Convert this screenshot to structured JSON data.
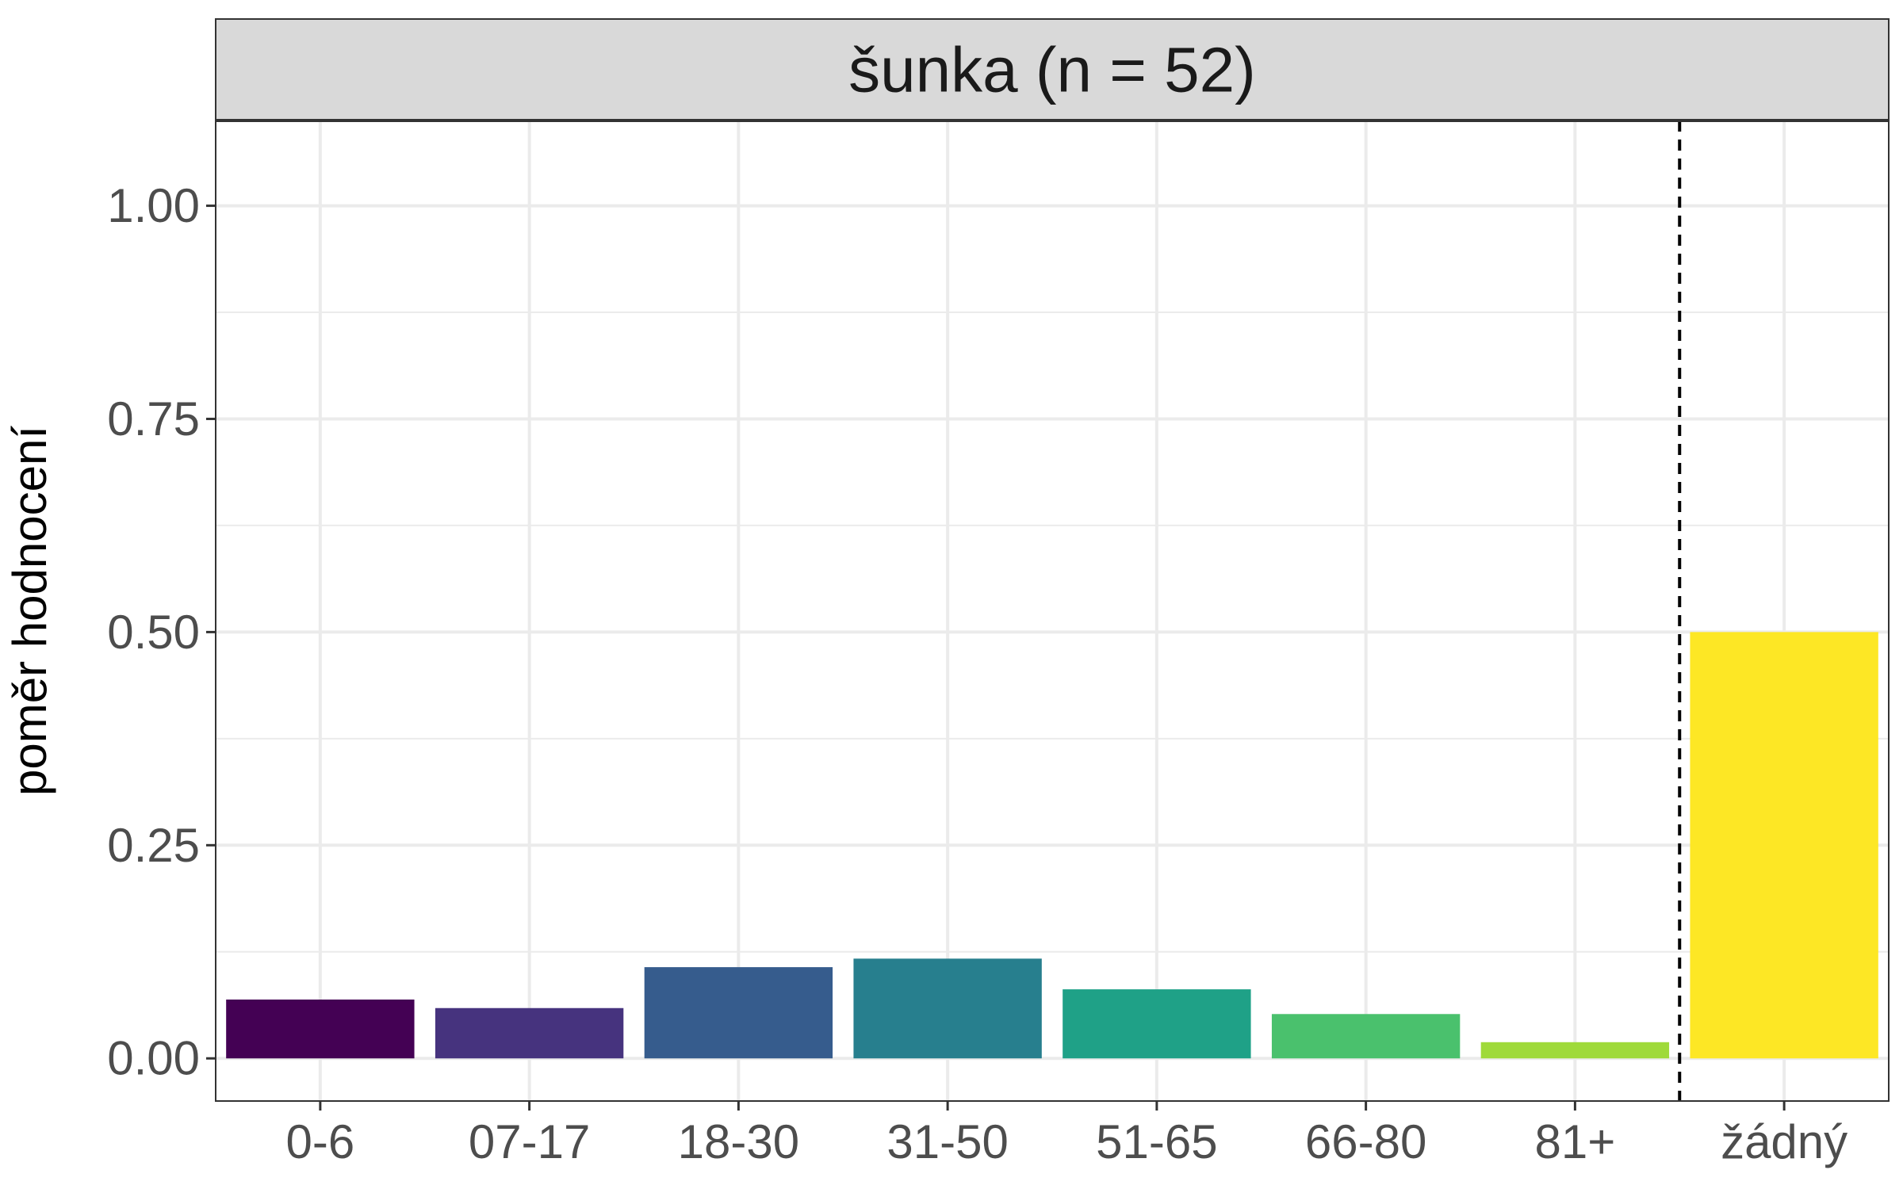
{
  "chart_data": {
    "type": "bar",
    "facet_title": "šunka (n = 52)",
    "categories": [
      "0-6",
      "07-17",
      "18-30",
      "31-50",
      "51-65",
      "66-80",
      "81+",
      "žádný"
    ],
    "values": [
      0.069,
      0.059,
      0.107,
      0.117,
      0.081,
      0.052,
      0.019,
      0.5
    ],
    "colors": [
      "#440154",
      "#46337E",
      "#365C8D",
      "#277F8E",
      "#1FA187",
      "#4AC16D",
      "#9FDA3A",
      "#FDE725"
    ],
    "xlabel": "",
    "ylabel": "poměr hodnocení",
    "ylim": [
      -0.05,
      1.1
    ],
    "y_ticks": [
      0,
      0.25,
      0.5,
      0.75,
      1.0
    ],
    "y_tick_labels": [
      "0.00",
      "0.25",
      "0.50",
      "0.75",
      "1.00"
    ],
    "y_minor_ticks": [
      0.125,
      0.375,
      0.625,
      0.875
    ],
    "separator_after_category": "81+",
    "separator_style": "dashed",
    "grid": true
  }
}
